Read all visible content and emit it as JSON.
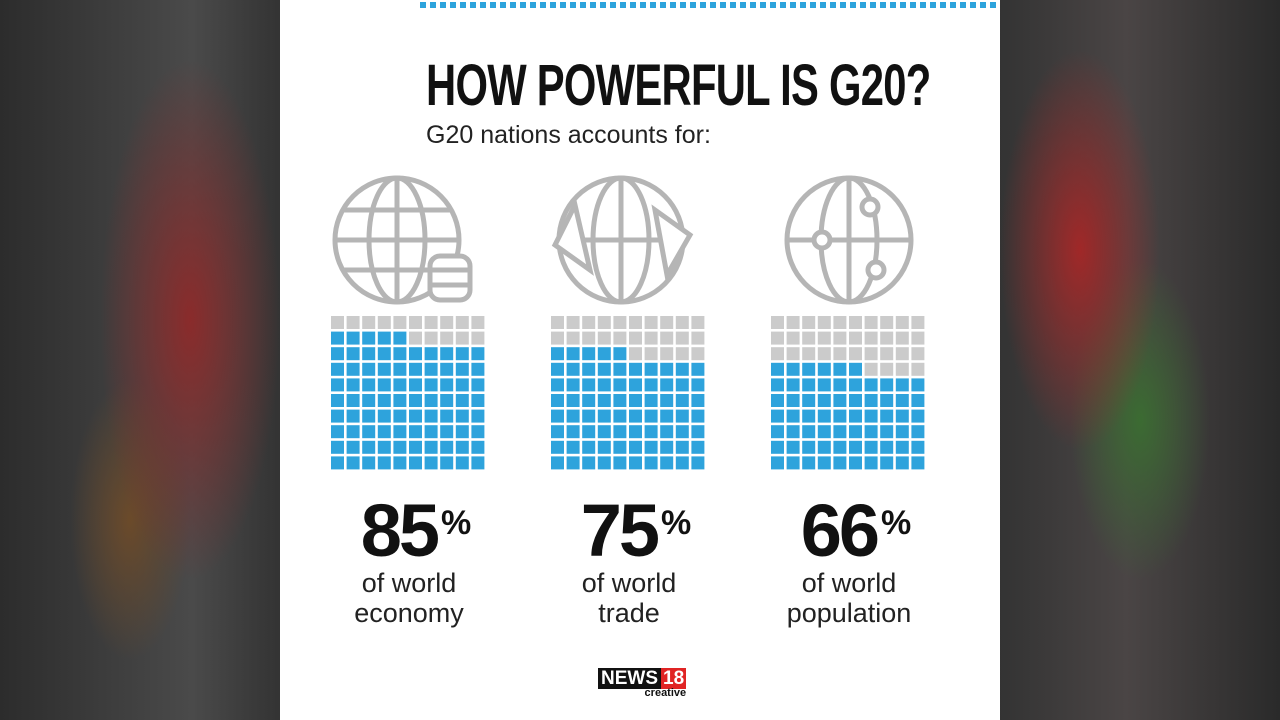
{
  "title": "HOW POWERFUL IS G20?",
  "subtitle": "G20 nations accounts for:",
  "chart_data": {
    "type": "waffle",
    "categories": [
      "of world economy",
      "of world trade",
      "of world population"
    ],
    "values": [
      85,
      75,
      66
    ],
    "unit": "%",
    "color": "#2ea3dc",
    "empty_color": "#cbcbcb"
  },
  "logo": {
    "name": "NEWS",
    "number": "18",
    "tag": "creative"
  }
}
